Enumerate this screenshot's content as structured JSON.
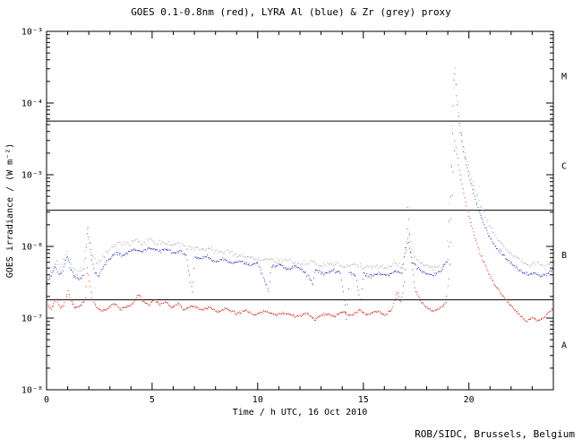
{
  "credit": "ROB/SIDC, Brussels, Belgium",
  "colors": {
    "background": "#ffffff",
    "axis": "#000000",
    "red_series": "#dd1100",
    "blue_series": "#2233bb",
    "grey_series": "#999999",
    "credit_text": "#008060"
  },
  "chart_data": {
    "type": "line",
    "title": "GOES 0.1-0.8nm (red), LYRA Al (blue) & Zr (grey) proxy",
    "xlabel": "Time / h UTC, 16 Oct 2010",
    "ylabel": "GOES irradiance / (W m⁻²)",
    "x_range": [
      0,
      24
    ],
    "x_major_ticks": [
      0,
      5,
      10,
      15,
      20
    ],
    "x_minor_step": 1,
    "y_scale": "log",
    "y_range": [
      1e-08,
      0.001
    ],
    "y_tick_values": [
      0.001,
      0.0001,
      1e-05,
      1e-06,
      1e-07,
      1e-08
    ],
    "y_tick_labels": [
      "10⁻³",
      "10⁻⁴",
      "10⁻⁵",
      "10⁻⁶",
      "10⁻⁷",
      "10⁻⁸"
    ],
    "flare_class_labels": [
      "M",
      "C",
      "B",
      "A"
    ],
    "class_line_levels": [
      5.6e-05,
      3.2e-06,
      1.8e-07
    ],
    "grid": "class-lines-only",
    "legend_position": "in-title",
    "series": [
      {
        "name": "GOES 0.1-0.8nm",
        "color_key": "red_series",
        "points": [
          [
            0,
            1.6e-07
          ],
          [
            0.2,
            1.3e-07
          ],
          [
            0.45,
            1.9e-07
          ],
          [
            0.6,
            1.4e-07
          ],
          [
            0.8,
            1.5e-07
          ],
          [
            1.0,
            2.4e-07
          ],
          [
            1.15,
            1.7e-07
          ],
          [
            1.35,
            1.4e-07
          ],
          [
            1.6,
            1.5e-07
          ],
          [
            1.8,
            1.8e-07
          ],
          [
            1.92,
            5.5e-07
          ],
          [
            2.0,
            3.5e-07
          ],
          [
            2.15,
            1.9e-07
          ],
          [
            2.35,
            1.4e-07
          ],
          [
            2.6,
            1.25e-07
          ],
          [
            2.9,
            1.35e-07
          ],
          [
            3.2,
            1.6e-07
          ],
          [
            3.5,
            1.3e-07
          ],
          [
            3.8,
            1.45e-07
          ],
          [
            4.1,
            1.6e-07
          ],
          [
            4.35,
            2.2e-07
          ],
          [
            4.55,
            1.7e-07
          ],
          [
            4.8,
            1.5e-07
          ],
          [
            5.1,
            1.8e-07
          ],
          [
            5.35,
            1.5e-07
          ],
          [
            5.6,
            1.7e-07
          ],
          [
            5.9,
            1.4e-07
          ],
          [
            6.2,
            1.6e-07
          ],
          [
            6.5,
            1.3e-07
          ],
          [
            6.9,
            1.5e-07
          ],
          [
            7.3,
            1.3e-07
          ],
          [
            7.7,
            1.4e-07
          ],
          [
            8.1,
            1.2e-07
          ],
          [
            8.5,
            1.35e-07
          ],
          [
            9.0,
            1.15e-07
          ],
          [
            9.4,
            1.3e-07
          ],
          [
            9.8,
            1.1e-07
          ],
          [
            10.3,
            1.25e-07
          ],
          [
            10.8,
            1.1e-07
          ],
          [
            11.3,
            1.2e-07
          ],
          [
            11.8,
            1.05e-07
          ],
          [
            12.3,
            1.15e-07
          ],
          [
            12.7,
            9.5e-08
          ],
          [
            13.1,
            1.15e-07
          ],
          [
            13.6,
            1.05e-07
          ],
          [
            14.0,
            1.25e-07
          ],
          [
            14.4,
            1.05e-07
          ],
          [
            14.8,
            1.3e-07
          ],
          [
            15.2,
            1.1e-07
          ],
          [
            15.6,
            1.25e-07
          ],
          [
            16.0,
            1.1e-07
          ],
          [
            16.35,
            1.3e-07
          ],
          [
            16.6,
            2.4e-07
          ],
          [
            16.75,
            1.6e-07
          ],
          [
            16.95,
            3.5e-07
          ],
          [
            17.1,
            3.8e-06
          ],
          [
            17.25,
            6e-07
          ],
          [
            17.45,
            2.5e-07
          ],
          [
            17.7,
            1.7e-07
          ],
          [
            18.0,
            1.4e-07
          ],
          [
            18.3,
            1.25e-07
          ],
          [
            18.6,
            1.35e-07
          ],
          [
            18.9,
            1.6e-07
          ],
          [
            19.05,
            4e-07
          ],
          [
            19.18,
            4e-06
          ],
          [
            19.3,
            3.2e-05
          ],
          [
            19.45,
            1.6e-05
          ],
          [
            19.6,
            9e-06
          ],
          [
            19.8,
            4.5e-06
          ],
          [
            20.0,
            2.6e-06
          ],
          [
            20.25,
            1.4e-06
          ],
          [
            20.5,
            8e-07
          ],
          [
            20.8,
            5e-07
          ],
          [
            21.1,
            3.3e-07
          ],
          [
            21.45,
            2.3e-07
          ],
          [
            21.8,
            1.7e-07
          ],
          [
            22.1,
            1.35e-07
          ],
          [
            22.45,
            1.05e-07
          ],
          [
            22.7,
            9e-08
          ],
          [
            23.0,
            1e-07
          ],
          [
            23.3,
            9.2e-08
          ],
          [
            23.6,
            1.05e-07
          ],
          [
            23.85,
            1.3e-07
          ],
          [
            24,
            1.35e-07
          ]
        ]
      },
      {
        "name": "LYRA Al proxy",
        "color_key": "blue_series",
        "points": [
          [
            0,
            3e-07
          ],
          [
            0.2,
            3.8e-07
          ],
          [
            0.4,
            5.5e-07
          ],
          [
            0.55,
            4e-07
          ],
          [
            0.75,
            4.5e-07
          ],
          [
            0.95,
            7.5e-07
          ],
          [
            1.1,
            5e-07
          ],
          [
            1.3,
            3.8e-07
          ],
          [
            1.55,
            3.4e-07
          ],
          [
            1.75,
            4.2e-07
          ],
          [
            1.92,
            1.9e-06
          ],
          [
            2.05,
            9e-07
          ],
          [
            2.25,
            4.5e-07
          ],
          [
            2.45,
            3.8e-07
          ],
          [
            2.7,
            5.5e-07
          ],
          [
            3.0,
            7e-07
          ],
          [
            3.3,
            8e-07
          ],
          [
            3.6,
            7.5e-07
          ],
          [
            3.9,
            8.5e-07
          ],
          [
            4.2,
            9e-07
          ],
          [
            4.5,
            8.5e-07
          ],
          [
            4.8,
            9.5e-07
          ],
          [
            5.1,
            9e-07
          ],
          [
            5.4,
            8.5e-07
          ],
          [
            5.7,
            9e-07
          ],
          [
            6.0,
            8e-07
          ],
          [
            6.3,
            8.5e-07
          ],
          [
            6.6,
            7.5e-07
          ],
          [
            6.9,
            2.2e-07
          ],
          [
            7.0,
            7e-07
          ],
          [
            7.3,
            6.8e-07
          ],
          [
            7.6,
            7.2e-07
          ],
          [
            8.0,
            6.2e-07
          ],
          [
            8.4,
            6.6e-07
          ],
          [
            8.8,
            5.8e-07
          ],
          [
            9.2,
            6.2e-07
          ],
          [
            9.6,
            5.5e-07
          ],
          [
            10.0,
            5.8e-07
          ],
          [
            10.5,
            2.4e-07
          ],
          [
            10.62,
            5.2e-07
          ],
          [
            11.0,
            5.5e-07
          ],
          [
            11.4,
            4.8e-07
          ],
          [
            11.8,
            5.2e-07
          ],
          [
            12.2,
            4.5e-07
          ],
          [
            12.6,
            3e-07
          ],
          [
            12.72,
            4.8e-07
          ],
          [
            13.1,
            4.2e-07
          ],
          [
            13.5,
            4.6e-07
          ],
          [
            13.9,
            4.2e-07
          ],
          [
            14.2,
            9.5e-08
          ],
          [
            14.32,
            4.4e-07
          ],
          [
            14.6,
            4e-07
          ],
          [
            14.85,
            1.6e-07
          ],
          [
            14.97,
            4.2e-07
          ],
          [
            15.3,
            3.8e-07
          ],
          [
            15.7,
            4.2e-07
          ],
          [
            16.1,
            3.9e-07
          ],
          [
            16.5,
            4.6e-07
          ],
          [
            16.8,
            4.2e-07
          ],
          [
            17.1,
            1.3e-06
          ],
          [
            17.3,
            6e-07
          ],
          [
            17.6,
            4.8e-07
          ],
          [
            17.95,
            4.2e-07
          ],
          [
            18.3,
            4e-07
          ],
          [
            18.65,
            4.4e-07
          ],
          [
            19.0,
            6.5e-07
          ],
          [
            19.12,
            6e-06
          ],
          [
            19.22,
            7e-05
          ],
          [
            19.3,
            0.00032
          ],
          [
            19.42,
            0.00011
          ],
          [
            19.55,
            4.5e-05
          ],
          [
            19.7,
            2.4e-05
          ],
          [
            19.85,
            1.5e-05
          ],
          [
            20.0,
            9.5e-06
          ],
          [
            20.2,
            5.5e-06
          ],
          [
            20.45,
            3.2e-06
          ],
          [
            20.7,
            2e-06
          ],
          [
            21.0,
            1.3e-06
          ],
          [
            21.3,
            9.5e-07
          ],
          [
            21.6,
            7.5e-07
          ],
          [
            21.9,
            6.2e-07
          ],
          [
            22.2,
            5.2e-07
          ],
          [
            22.5,
            4.4e-07
          ],
          [
            22.8,
            4e-07
          ],
          [
            23.1,
            4.4e-07
          ],
          [
            23.4,
            3.8e-07
          ],
          [
            23.7,
            4.2e-07
          ],
          [
            24,
            4.8e-07
          ]
        ]
      },
      {
        "name": "LYRA Zr proxy",
        "color_key": "grey_series",
        "points": [
          [
            0,
            3.4e-07
          ],
          [
            0.25,
            4.4e-07
          ],
          [
            0.45,
            6e-07
          ],
          [
            0.65,
            4.8e-07
          ],
          [
            0.95,
            8.5e-07
          ],
          [
            1.15,
            5.5e-07
          ],
          [
            1.4,
            4.2e-07
          ],
          [
            1.7,
            5e-07
          ],
          [
            1.92,
            1.6e-06
          ],
          [
            2.1,
            8.5e-07
          ],
          [
            2.4,
            5.5e-07
          ],
          [
            2.75,
            7.5e-07
          ],
          [
            3.1,
            9.5e-07
          ],
          [
            3.45,
            1.15e-06
          ],
          [
            3.8,
            1.05e-06
          ],
          [
            4.15,
            1.2e-06
          ],
          [
            4.5,
            1.1e-06
          ],
          [
            4.85,
            1.2e-06
          ],
          [
            5.2,
            1.1e-06
          ],
          [
            5.55,
            1.15e-06
          ],
          [
            5.9,
            1.05e-06
          ],
          [
            6.25,
            1.1e-06
          ],
          [
            6.6,
            9.5e-07
          ],
          [
            7.0,
            9.8e-07
          ],
          [
            7.4,
            8.8e-07
          ],
          [
            7.8,
            9.2e-07
          ],
          [
            8.2,
            8.2e-07
          ],
          [
            8.6,
            8.6e-07
          ],
          [
            9.0,
            7.6e-07
          ],
          [
            9.5,
            7e-07
          ],
          [
            10.0,
            6.4e-07
          ],
          [
            10.5,
            6.8e-07
          ],
          [
            11.0,
            6e-07
          ],
          [
            11.5,
            6.4e-07
          ],
          [
            12.0,
            5.6e-07
          ],
          [
            12.5,
            6e-07
          ],
          [
            13.0,
            5.4e-07
          ],
          [
            13.5,
            5.8e-07
          ],
          [
            14.0,
            5.2e-07
          ],
          [
            14.5,
            5.6e-07
          ],
          [
            15.0,
            5e-07
          ],
          [
            15.5,
            5.4e-07
          ],
          [
            16.0,
            5e-07
          ],
          [
            16.5,
            5.8e-07
          ],
          [
            16.85,
            5.2e-07
          ],
          [
            17.1,
            1.6e-06
          ],
          [
            17.35,
            7.5e-07
          ],
          [
            17.7,
            5.8e-07
          ],
          [
            18.1,
            5.2e-07
          ],
          [
            18.5,
            5e-07
          ],
          [
            18.9,
            6e-07
          ],
          [
            19.1,
            5e-06
          ],
          [
            19.22,
            8e-05
          ],
          [
            19.3,
            0.00035
          ],
          [
            19.42,
            0.00012
          ],
          [
            19.55,
            5e-05
          ],
          [
            19.7,
            2.7e-05
          ],
          [
            19.85,
            1.7e-05
          ],
          [
            20.05,
            1.05e-05
          ],
          [
            20.3,
            6e-06
          ],
          [
            20.55,
            3.6e-06
          ],
          [
            20.85,
            2.3e-06
          ],
          [
            21.15,
            1.5e-06
          ],
          [
            21.5,
            1.1e-06
          ],
          [
            21.85,
            8.5e-07
          ],
          [
            22.2,
            7e-07
          ],
          [
            22.55,
            6e-07
          ],
          [
            22.9,
            5.4e-07
          ],
          [
            23.25,
            6e-07
          ],
          [
            23.6,
            5.2e-07
          ],
          [
            24,
            6.2e-07
          ]
        ]
      }
    ]
  }
}
